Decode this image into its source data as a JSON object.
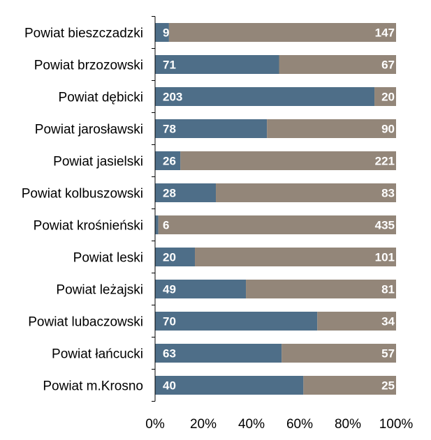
{
  "chart_data": {
    "type": "bar",
    "orientation": "horizontal",
    "stacked": "percent",
    "categories": [
      "Powiat bieszczadzki",
      "Powiat brzozowski",
      "Powiat dębicki",
      "Powiat jarosławski",
      "Powiat jasielski",
      "Powiat kolbuszowski",
      "Powiat krośnieński",
      "Powiat leski",
      "Powiat leżajski",
      "Powiat lubaczowski",
      "Powiat łańcucki",
      "Powiat m.Krosno"
    ],
    "series": [
      {
        "values": [
          9,
          71,
          203,
          78,
          26,
          28,
          6,
          20,
          49,
          70,
          63,
          40
        ],
        "color": "#4e6e88"
      },
      {
        "values": [
          147,
          67,
          20,
          90,
          221,
          83,
          435,
          101,
          81,
          34,
          57,
          25
        ],
        "color": "#938679"
      }
    ],
    "x_ticks": [
      "0%",
      "20%",
      "40%",
      "60%",
      "80%",
      "100%"
    ],
    "xlim": [
      0,
      100
    ],
    "grid": false,
    "legend": "none"
  }
}
